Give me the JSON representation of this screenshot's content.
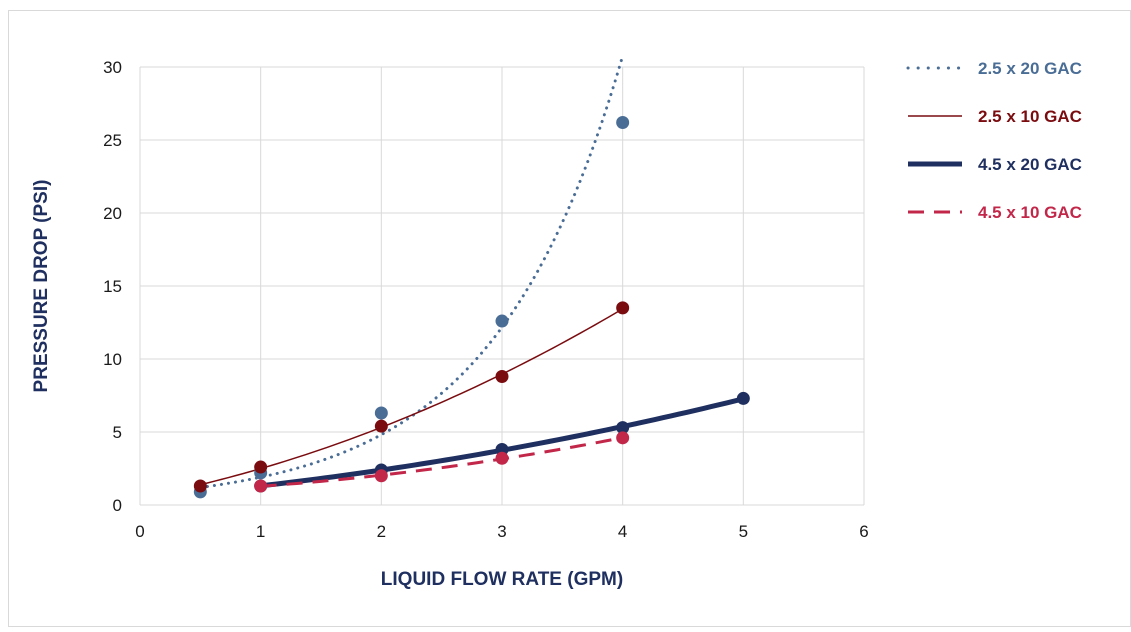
{
  "chart_data": {
    "type": "scatter",
    "xlabel": "LIQUID FLOW RATE (GPM)",
    "ylabel": "PRESSURE DROP (PSI)",
    "xlim": [
      0,
      6
    ],
    "ylim": [
      0,
      30
    ],
    "x_ticks": [
      "0",
      "1",
      "2",
      "3",
      "4",
      "5",
      "6"
    ],
    "y_ticks": [
      "0",
      "5",
      "10",
      "15",
      "20",
      "25",
      "30"
    ],
    "grid": true,
    "legend_position": "right",
    "series": [
      {
        "name": "2.5 x 20 GAC",
        "line_style": "dotted",
        "color": "#4a6d96",
        "trendline": "exponential",
        "x": [
          0.5,
          1,
          2,
          3,
          4
        ],
        "y": [
          0.9,
          2.2,
          6.3,
          12.6,
          26.2
        ]
      },
      {
        "name": "2.5 x 10 GAC",
        "line_style": "solid-thin",
        "color": "#7a0c10",
        "trendline": "smooth",
        "x": [
          0.5,
          1,
          2,
          3,
          4
        ],
        "y": [
          1.3,
          2.6,
          5.4,
          8.8,
          13.5
        ]
      },
      {
        "name": "4.5 x 20 GAC",
        "line_style": "solid-thick",
        "color": "#1f3060",
        "trendline": "smooth",
        "x": [
          1,
          2,
          3,
          4,
          5
        ],
        "y": [
          1.3,
          2.4,
          3.8,
          5.3,
          7.3
        ]
      },
      {
        "name": "4.5 x 10 GAC",
        "line_style": "dashed",
        "color": "#c2274a",
        "trendline": "smooth",
        "x": [
          1,
          2,
          3,
          4
        ],
        "y": [
          1.3,
          2.0,
          3.2,
          4.6
        ]
      }
    ]
  }
}
